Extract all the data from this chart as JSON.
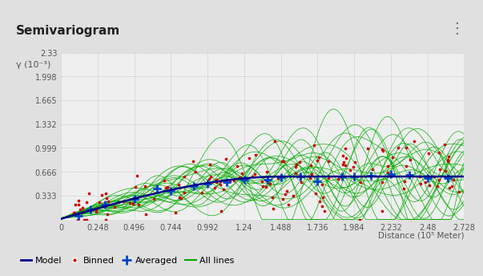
{
  "title": "Semivariogram",
  "ylabel": "γ (10⁻³)",
  "xlabel": "Distance (10⁵ Meter)",
  "xlim": [
    0,
    2.728
  ],
  "ylim": [
    0,
    2.33
  ],
  "yticks": [
    0.333,
    0.666,
    0.999,
    1.332,
    1.665,
    1.998,
    2.33
  ],
  "xticks": [
    0,
    0.248,
    0.496,
    0.744,
    0.992,
    1.24,
    1.488,
    1.736,
    1.984,
    2.232,
    2.48,
    2.728
  ],
  "bg_color": "#e0e0e0",
  "plot_bg_color": "#efefef",
  "title_bg": "#d4d4d4",
  "model_color": "#00008B",
  "binned_color": "#cc0000",
  "averaged_color": "#0044cc",
  "alllines_color": "#00aa00",
  "sill": 0.6,
  "range_val": 1.5,
  "nugget": 0.01,
  "tick_color": "#555555",
  "grid_color": "#aaaaaa"
}
